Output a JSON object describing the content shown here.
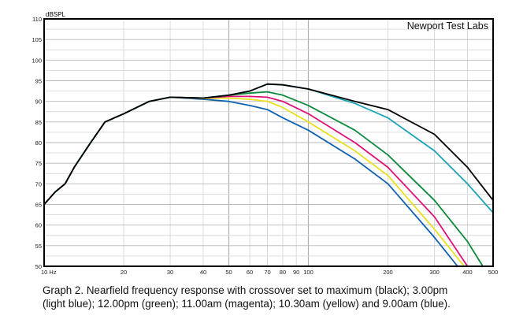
{
  "chart_data": {
    "type": "line",
    "title": "",
    "annotation": "Newport Test Labs",
    "ylabel": "dBSPL",
    "xlabel": "",
    "xscale": "log",
    "xlim": [
      10,
      500
    ],
    "ylim": [
      50,
      110
    ],
    "grid": true,
    "x_ticks": [
      10,
      20,
      30,
      40,
      50,
      60,
      70,
      80,
      90,
      100,
      200,
      300,
      400,
      500
    ],
    "x_tick_labels": [
      "10 Hz",
      "20",
      "30",
      "40",
      "50",
      "60",
      "70",
      "80",
      "90",
      "100",
      "200",
      "300",
      "400",
      "500"
    ],
    "y_ticks": [
      50,
      55,
      60,
      65,
      70,
      75,
      80,
      85,
      90,
      95,
      100,
      105,
      110
    ],
    "y_tick_labels": [
      "50",
      "55",
      "60",
      "65",
      "70",
      "75",
      "80",
      "85",
      "90",
      "95",
      "100",
      "105",
      "110"
    ],
    "x": [
      10,
      11,
      12,
      13,
      15,
      17,
      20,
      25,
      30,
      40,
      50,
      60,
      70,
      80,
      100,
      150,
      200,
      300,
      400,
      500
    ],
    "series": [
      {
        "name": "maximum (black)",
        "color": "#000000",
        "values": [
          65,
          68,
          70,
          74,
          80,
          85,
          87,
          90,
          91,
          90.8,
          91.5,
          92.5,
          94.2,
          94,
          93,
          90,
          88,
          82,
          74,
          66
        ]
      },
      {
        "name": "3.00pm (light blue)",
        "color": "#1aa3b8",
        "values": [
          65,
          68,
          70,
          74,
          80,
          85,
          87,
          90,
          91,
          90.8,
          91.5,
          92.5,
          94.2,
          94,
          93,
          89.5,
          86,
          78,
          70,
          63
        ]
      },
      {
        "name": "12.00pm (green)",
        "color": "#0a8a3a",
        "values": [
          65,
          68,
          70,
          74,
          80,
          85,
          87,
          90,
          91,
          90.8,
          91.5,
          92,
          92.3,
          91.5,
          89,
          83,
          77,
          66,
          56,
          null
        ]
      },
      {
        "name": "11.00am (magenta)",
        "color": "#e0107a",
        "values": [
          65,
          68,
          70,
          74,
          80,
          85,
          87,
          90,
          91,
          90.8,
          91.2,
          91.2,
          91,
          90,
          87,
          80,
          74,
          62,
          null,
          null
        ]
      },
      {
        "name": "10.30am (yellow)",
        "color": "#e8e020",
        "values": [
          65,
          68,
          70,
          74,
          80,
          85,
          87,
          90,
          91,
          90.7,
          90.8,
          90.5,
          90,
          88.5,
          85,
          78,
          72,
          59,
          null,
          null
        ]
      },
      {
        "name": "9.00am (blue)",
        "color": "#1060b0",
        "values": [
          65,
          68,
          70,
          74,
          80,
          85,
          87,
          90,
          91,
          90.5,
          90,
          89,
          88,
          86,
          83,
          76,
          70,
          57,
          null,
          null
        ]
      }
    ]
  },
  "caption": {
    "line1": "Graph 2. Nearfield frequency response with crossover set to maximum (black); 3.00pm",
    "line2": "(light blue); 12.00pm (green); 11.00am (magenta); 10.30am (yellow) and 9.00am (blue)."
  }
}
